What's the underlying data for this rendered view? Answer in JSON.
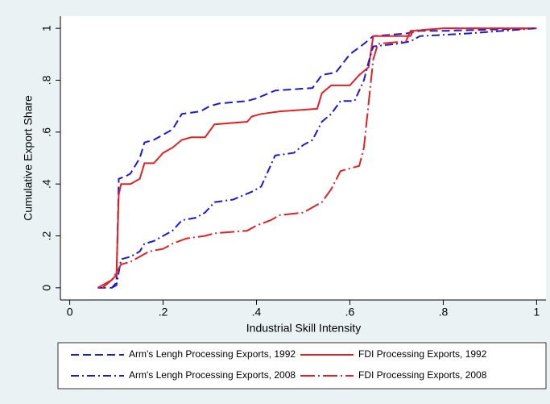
{
  "chart_data": {
    "type": "line",
    "xlabel": "Industrial Skill Intensity",
    "ylabel": "Cumulative Export Share",
    "xlim": [
      -0.02,
      1.02
    ],
    "ylim": [
      -0.047,
      1.047
    ],
    "xticks": [
      0,
      {
        "value": 0.2,
        "label": ".2"
      },
      {
        "value": 0.4,
        "label": ".4"
      },
      {
        "value": 0.6,
        "label": ".6"
      },
      {
        "value": 0.8,
        "label": ".8"
      },
      1
    ],
    "yticks": [
      0,
      {
        "value": 0.2,
        "label": ".2"
      },
      {
        "value": 0.4,
        "label": ".4"
      },
      {
        "value": 0.6,
        "label": ".6"
      },
      {
        "value": 0.8,
        "label": ".8"
      },
      1
    ],
    "series": [
      {
        "name": "Arm's Lengh Processing Exports, 1992",
        "color": "#1a1ad0",
        "dash": "10,5",
        "x": [
          0.06,
          0.09,
          0.1,
          0.105,
          0.12,
          0.13,
          0.15,
          0.16,
          0.18,
          0.2,
          0.22,
          0.24,
          0.28,
          0.3,
          0.32,
          0.38,
          0.4,
          0.44,
          0.52,
          0.54,
          0.57,
          0.6,
          0.63,
          0.65,
          0.72,
          0.75,
          0.8,
          1.0
        ],
        "values": [
          0,
          0,
          0.02,
          0.42,
          0.43,
          0.44,
          0.5,
          0.56,
          0.57,
          0.59,
          0.61,
          0.67,
          0.68,
          0.7,
          0.71,
          0.72,
          0.73,
          0.76,
          0.77,
          0.82,
          0.83,
          0.9,
          0.94,
          0.97,
          0.98,
          0.99,
          0.99,
          1.0
        ]
      },
      {
        "name": "FDI Processing Exports, 1992",
        "color": "#e02222",
        "dash": "",
        "x": [
          0.06,
          0.09,
          0.1,
          0.105,
          0.11,
          0.13,
          0.15,
          0.16,
          0.18,
          0.2,
          0.22,
          0.24,
          0.26,
          0.29,
          0.31,
          0.38,
          0.39,
          0.41,
          0.45,
          0.53,
          0.54,
          0.56,
          0.6,
          0.62,
          0.64,
          0.65,
          0.73,
          0.735,
          0.8,
          1.0
        ],
        "values": [
          0,
          0.03,
          0.05,
          0.36,
          0.4,
          0.4,
          0.42,
          0.48,
          0.48,
          0.52,
          0.54,
          0.57,
          0.58,
          0.58,
          0.63,
          0.64,
          0.66,
          0.67,
          0.68,
          0.69,
          0.75,
          0.78,
          0.78,
          0.82,
          0.85,
          0.97,
          0.97,
          0.99,
          1.0,
          1.0
        ]
      },
      {
        "name": "Arm's Lengh Processing Exports, 2008",
        "color": "#1a1ad0",
        "dash": "10,4,2,4",
        "x": [
          0.09,
          0.1,
          0.11,
          0.13,
          0.15,
          0.16,
          0.18,
          0.2,
          0.22,
          0.24,
          0.27,
          0.29,
          0.31,
          0.35,
          0.39,
          0.41,
          0.44,
          0.48,
          0.5,
          0.52,
          0.54,
          0.56,
          0.58,
          0.61,
          0.63,
          0.64,
          0.65,
          0.7,
          0.73,
          0.75,
          0.85,
          1.0
        ],
        "values": [
          0,
          0.01,
          0.11,
          0.12,
          0.14,
          0.17,
          0.18,
          0.2,
          0.22,
          0.26,
          0.27,
          0.29,
          0.33,
          0.34,
          0.37,
          0.39,
          0.51,
          0.52,
          0.55,
          0.57,
          0.64,
          0.67,
          0.72,
          0.72,
          0.8,
          0.87,
          0.93,
          0.94,
          0.95,
          0.97,
          0.98,
          1.0
        ]
      },
      {
        "name": "FDI Processing Exports, 2008",
        "color": "#e02222",
        "dash": "18,4,2,4",
        "x": [
          0.07,
          0.09,
          0.1,
          0.11,
          0.13,
          0.15,
          0.17,
          0.2,
          0.22,
          0.25,
          0.29,
          0.31,
          0.38,
          0.4,
          0.43,
          0.45,
          0.5,
          0.54,
          0.56,
          0.58,
          0.62,
          0.63,
          0.65,
          0.66,
          0.72,
          0.73,
          0.8,
          1.0
        ],
        "values": [
          0,
          0.03,
          0.06,
          0.09,
          0.1,
          0.12,
          0.14,
          0.15,
          0.17,
          0.19,
          0.2,
          0.21,
          0.22,
          0.24,
          0.26,
          0.28,
          0.29,
          0.33,
          0.38,
          0.45,
          0.47,
          0.54,
          0.88,
          0.94,
          0.95,
          0.99,
          1.0,
          1.0
        ]
      }
    ]
  }
}
